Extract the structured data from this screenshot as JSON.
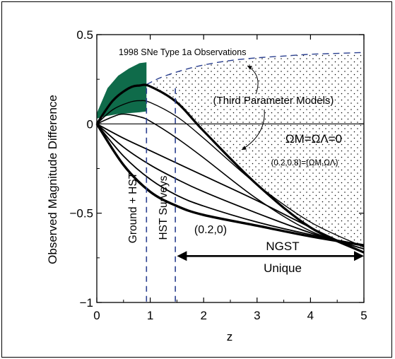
{
  "chart_data": {
    "type": "line",
    "title": "",
    "xlabel": "z",
    "ylabel": "Observed Magnitude Difference",
    "xlim": [
      0,
      5
    ],
    "ylim": [
      -1,
      0.5
    ],
    "x_ticks": [
      "0",
      "1",
      "2",
      "3",
      "4",
      "5"
    ],
    "y_ticks": [
      "0.5",
      "0",
      "−0.5",
      "−1"
    ],
    "colors": {
      "observations_fill": "#0f6b4a",
      "survey_lines": "#2a3f8f",
      "curves": "#000000"
    },
    "observations_region": {
      "label": "1998 SNe Type 1a Observations",
      "z_range": [
        0,
        0.93
      ],
      "upper": [
        [
          0,
          0.06
        ],
        [
          0.2,
          0.2
        ],
        [
          0.4,
          0.27
        ],
        [
          0.6,
          0.31
        ],
        [
          0.8,
          0.34
        ],
        [
          0.93,
          0.345
        ]
      ],
      "lower": [
        [
          0,
          0.03
        ],
        [
          0.2,
          0.045
        ],
        [
          0.4,
          0.055
        ],
        [
          0.6,
          0.06
        ],
        [
          0.8,
          0.065
        ],
        [
          0.93,
          0.07
        ]
      ]
    },
    "third_parameter_region": {
      "label": "(Third Parameter Models)",
      "upper_dashed": [
        [
          0.93,
          0.22
        ],
        [
          1.2,
          0.26
        ],
        [
          1.6,
          0.3
        ],
        [
          2,
          0.33
        ],
        [
          2.5,
          0.355
        ],
        [
          3,
          0.37
        ],
        [
          3.5,
          0.38
        ],
        [
          4,
          0.39
        ],
        [
          4.5,
          0.395
        ],
        [
          5,
          0.4
        ]
      ]
    },
    "reference_line": {
      "label": "ΩM=ΩΛ=0",
      "y": 0
    },
    "annotations": {
      "model_0208": "(0.2,0.8)=(ΩM,ΩΛ)",
      "model_020": "(0.2,0)",
      "ground_hst": "Ground + HST",
      "hst_surveys": "HST Surveys",
      "ngst_line1": "NGST",
      "ngst_line2": "Unique"
    },
    "survey_limits": {
      "ground_hst_z": 0.93,
      "hst_surveys_z": 1.47
    },
    "ngst_arrow": {
      "from_z": 1.5,
      "to_z": 5,
      "y": -0.74
    },
    "series": [
      {
        "width": 3.2,
        "points": [
          [
            0,
            0
          ],
          [
            0.3,
            0.13
          ],
          [
            0.6,
            0.2
          ],
          [
            0.8,
            0.215
          ],
          [
            1,
            0.21
          ],
          [
            1.5,
            0.12
          ],
          [
            2,
            -0.04
          ],
          [
            3,
            -0.34
          ],
          [
            4,
            -0.58
          ],
          [
            5,
            -0.72
          ]
        ]
      },
      {
        "width": 1.4,
        "points": [
          [
            0,
            0
          ],
          [
            0.3,
            0.08
          ],
          [
            0.6,
            0.12
          ],
          [
            0.8,
            0.13
          ],
          [
            1,
            0.12
          ],
          [
            1.5,
            0.04
          ],
          [
            2,
            -0.08
          ],
          [
            3,
            -0.34
          ],
          [
            4,
            -0.55
          ],
          [
            5,
            -0.69
          ]
        ]
      },
      {
        "width": 1.6,
        "points": [
          [
            0,
            0
          ],
          [
            0.3,
            0.04
          ],
          [
            0.5,
            0.055
          ],
          [
            0.8,
            0.04
          ],
          [
            1,
            0.015
          ],
          [
            1.5,
            -0.08
          ],
          [
            2,
            -0.19
          ],
          [
            3,
            -0.42
          ],
          [
            4,
            -0.6
          ],
          [
            5,
            -0.7
          ]
        ]
      },
      {
        "width": 1.8,
        "points": [
          [
            0,
            0
          ],
          [
            0.5,
            -0.08
          ],
          [
            1,
            -0.15
          ],
          [
            1.5,
            -0.22
          ],
          [
            2,
            -0.29
          ],
          [
            3,
            -0.43
          ],
          [
            4,
            -0.58
          ],
          [
            5,
            -0.72
          ]
        ]
      },
      {
        "width": 1.8,
        "points": [
          [
            0,
            0
          ],
          [
            0.5,
            -0.13
          ],
          [
            1,
            -0.23
          ],
          [
            1.5,
            -0.31
          ],
          [
            2,
            -0.38
          ],
          [
            3,
            -0.5
          ],
          [
            4,
            -0.61
          ],
          [
            5,
            -0.7
          ]
        ]
      },
      {
        "width": 1.8,
        "points": [
          [
            0,
            0
          ],
          [
            0.5,
            -0.18
          ],
          [
            1,
            -0.31
          ],
          [
            1.5,
            -0.4
          ],
          [
            2,
            -0.46
          ],
          [
            3,
            -0.55
          ],
          [
            4,
            -0.62
          ],
          [
            5,
            -0.68
          ]
        ]
      },
      {
        "width": 3.4,
        "points": [
          [
            0,
            0
          ],
          [
            0.5,
            -0.23
          ],
          [
            1,
            -0.38
          ],
          [
            1.5,
            -0.46
          ],
          [
            2,
            -0.51
          ],
          [
            3,
            -0.57
          ],
          [
            4,
            -0.63
          ],
          [
            5,
            -0.68
          ]
        ]
      }
    ]
  }
}
